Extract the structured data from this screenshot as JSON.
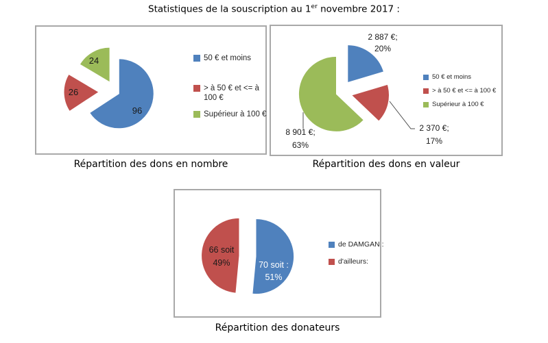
{
  "page_title_parts": {
    "pre": "Statistiques de la souscription au 1",
    "superscript": "er",
    "post": " novembre 2017 :"
  },
  "palette": {
    "blue": "#4F81BD",
    "red": "#C0504D",
    "green": "#9BBB59",
    "panel_border": "#A8A8A8",
    "leader_line": "#4d4d4d",
    "label_text": "#1a1a1a"
  },
  "chart_data": [
    {
      "id": "dons_nombre",
      "type": "pie",
      "title": "Répartition des dons en nombre",
      "legend_position": "right",
      "slices": [
        {
          "legend_label": "50 € et moins",
          "value": 96,
          "color_key": "blue",
          "data_label_lines": [
            "96"
          ]
        },
        {
          "legend_label": "> à 50 € et <= à 100 €",
          "value": 26,
          "color_key": "red",
          "data_label_lines": [
            "26"
          ]
        },
        {
          "legend_label": "Supérieur à 100 €",
          "value": 24,
          "color_key": "green",
          "data_label_lines": [
            "24"
          ]
        }
      ]
    },
    {
      "id": "dons_valeur",
      "type": "pie",
      "title": "Répartition des dons en valeur",
      "legend_position": "right",
      "slices": [
        {
          "legend_label": "50 € et moins",
          "value": 2887,
          "percent": "20%",
          "color_key": "blue",
          "data_label_lines": [
            "2 887 €;",
            "20%"
          ]
        },
        {
          "legend_label": "> à 50 € et <= à 100 €",
          "value": 2370,
          "percent": "17%",
          "color_key": "red",
          "data_label_lines": [
            "2 370 €;",
            "17%"
          ]
        },
        {
          "legend_label": "Supérieur à 100 €",
          "value": 8901,
          "percent": "63%",
          "color_key": "green",
          "data_label_lines": [
            "8 901 €;",
            "63%"
          ]
        }
      ]
    },
    {
      "id": "donateurs",
      "type": "pie",
      "title": "Répartition des donateurs",
      "legend_position": "right",
      "slices": [
        {
          "legend_label": "de DAMGAN :",
          "value": 70,
          "percent": "51%",
          "color_key": "blue",
          "data_label_lines": [
            "70 soit :",
            "51%"
          ]
        },
        {
          "legend_label": "d'ailleurs:",
          "value": 66,
          "percent": "49%",
          "color_key": "red",
          "data_label_lines": [
            "66 soit",
            "49%"
          ]
        }
      ]
    }
  ]
}
